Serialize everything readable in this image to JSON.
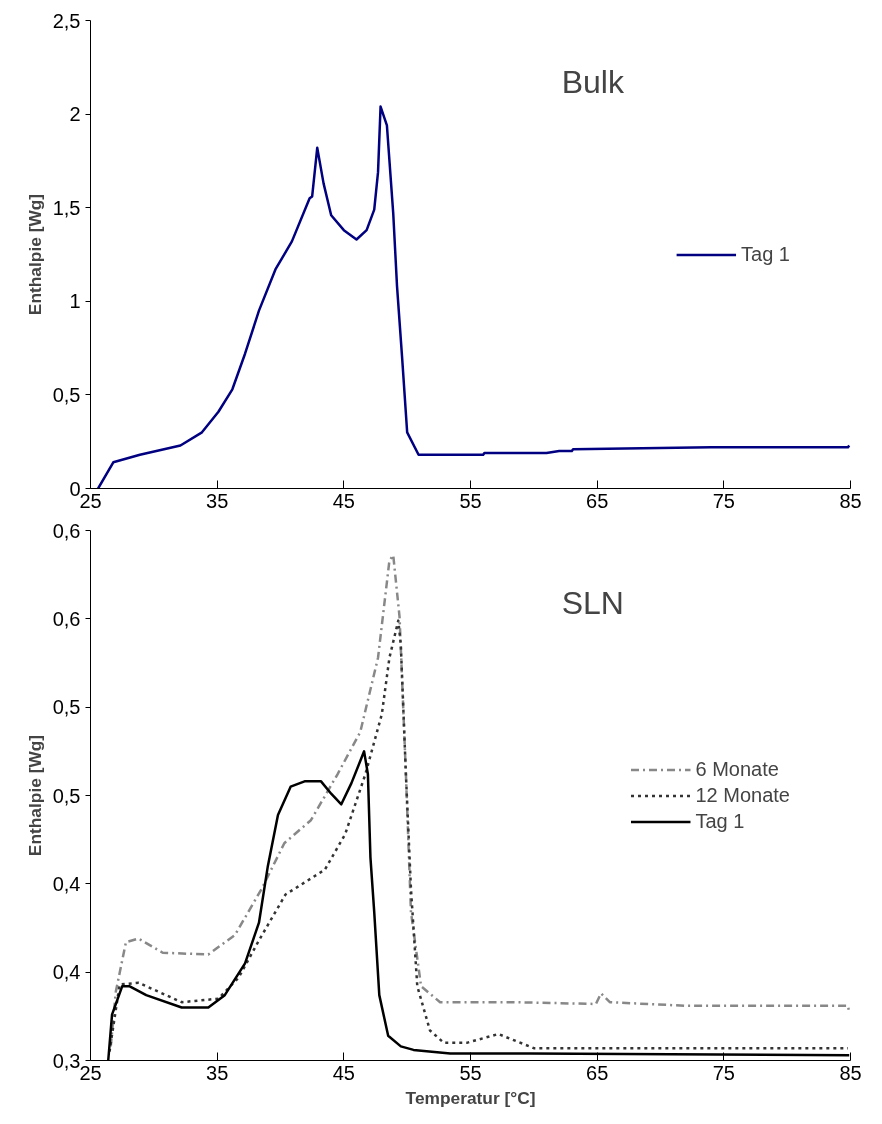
{
  "chart_data": [
    {
      "type": "line",
      "title": "Bulk",
      "ylabel": "Enthalpie [Wg]",
      "legend": "right",
      "grid": false,
      "xlim": [
        25,
        85
      ],
      "xticks": [
        25,
        35,
        45,
        55,
        65,
        75,
        85
      ],
      "ylim": [
        0,
        2.5
      ],
      "yticks": [
        0,
        {
          "value": 0.5,
          "label": "0,5"
        },
        1,
        {
          "value": 1.5,
          "label": "1,5"
        },
        2,
        {
          "value": 2.5,
          "label": "2,5"
        }
      ],
      "series": [
        {
          "name": "Tag 1",
          "color": "#000080",
          "line_style": "solid",
          "x": [
            25.6,
            26.8,
            28.9,
            32.1,
            33.8,
            35.1,
            36.2,
            37.2,
            38.3,
            39.6,
            40.9,
            42.3,
            42.5,
            42.9,
            43.4,
            44.0,
            45.0,
            46.0,
            46.8,
            47.4,
            47.7,
            47.9,
            48.4,
            48.9,
            49.2,
            49.6,
            50.0,
            50.9,
            56,
            56.1,
            61,
            62,
            63,
            63.1,
            74,
            84.8,
            84.9
          ],
          "values": [
            0,
            0.14,
            0.18,
            0.23,
            0.3,
            0.41,
            0.53,
            0.72,
            0.95,
            1.17,
            1.32,
            1.55,
            1.56,
            1.82,
            1.63,
            1.46,
            1.38,
            1.33,
            1.38,
            1.49,
            1.69,
            2.04,
            1.94,
            1.47,
            1.08,
            0.7,
            0.3,
            0.18,
            0.18,
            0.19,
            0.19,
            0.2,
            0.2,
            0.21,
            0.22,
            0.22,
            0.23
          ]
        }
      ]
    },
    {
      "type": "line",
      "title": "SLN",
      "xlabel": "Temperatur [°C]",
      "ylabel": "Enthalpie [Wg]",
      "legend": "right",
      "grid": false,
      "xlim": [
        25,
        85
      ],
      "xticks": [
        25,
        35,
        45,
        55,
        65,
        75,
        85
      ],
      "ylim": [
        0.3,
        0.6
      ],
      "yticks": [
        {
          "value": 0.3,
          "label": "0,3"
        },
        {
          "value": 0.35,
          "label": "0,4"
        },
        {
          "value": 0.4,
          "label": "0,4"
        },
        {
          "value": 0.45,
          "label": "0,5"
        },
        {
          "value": 0.5,
          "label": "0,5"
        },
        {
          "value": 0.55,
          "label": "0,6"
        },
        {
          "value": 0.6,
          "label": "0,6"
        }
      ],
      "series": [
        {
          "name": "6 Monate",
          "color": "#888888",
          "line_style": "dashed",
          "x": [
            26.6,
            27.0,
            27.8,
            28.8,
            30.7,
            34.3,
            36.4,
            38.5,
            40.3,
            42.4,
            44.5,
            46.3,
            47.7,
            48.6,
            48.9,
            49.4,
            49.9,
            50.3,
            51.1,
            52.6,
            58.4,
            64.9,
            65.3,
            66.0,
            71.9,
            84.8,
            84.9
          ],
          "values": [
            0.308,
            0.339,
            0.367,
            0.369,
            0.361,
            0.36,
            0.371,
            0.397,
            0.423,
            0.436,
            0.462,
            0.486,
            0.528,
            0.583,
            0.586,
            0.551,
            0.462,
            0.384,
            0.342,
            0.333,
            0.333,
            0.332,
            0.338,
            0.333,
            0.331,
            0.331,
            0.327
          ]
        },
        {
          "name": "12 Monate",
          "color": "#333333",
          "line_style": "dotted",
          "x": [
            26.5,
            27.3,
            28.8,
            32.2,
            35.1,
            36.7,
            38.3,
            40.4,
            43.5,
            45.1,
            46.7,
            48.0,
            48.6,
            49.3,
            49.5,
            49.9,
            50.3,
            50.8,
            51.8,
            52.9,
            54.7,
            57.2,
            60.0,
            84.8
          ],
          "values": [
            0.305,
            0.343,
            0.344,
            0.333,
            0.335,
            0.347,
            0.368,
            0.394,
            0.408,
            0.428,
            0.462,
            0.496,
            0.528,
            0.549,
            0.535,
            0.462,
            0.397,
            0.342,
            0.317,
            0.31,
            0.31,
            0.315,
            0.307,
            0.307
          ]
        },
        {
          "name": "Tag 1",
          "color": "#000000",
          "line_style": "solid",
          "x": [
            26.4,
            26.7,
            27.5,
            28.1,
            29.4,
            32.2,
            34.3,
            35.6,
            37.2,
            38.3,
            39.0,
            39.8,
            40.8,
            41.9,
            43.2,
            44.0,
            44.8,
            45.6,
            46.6,
            46.9,
            47.1,
            47.4,
            47.8,
            48.5,
            49.5,
            50.5,
            53.4,
            59.7,
            84.9
          ],
          "values": [
            0.3,
            0.326,
            0.342,
            0.342,
            0.337,
            0.33,
            0.33,
            0.337,
            0.355,
            0.378,
            0.41,
            0.439,
            0.455,
            0.458,
            0.458,
            0.451,
            0.445,
            0.457,
            0.475,
            0.462,
            0.415,
            0.384,
            0.337,
            0.314,
            0.308,
            0.306,
            0.304,
            0.304,
            0.303
          ]
        }
      ]
    }
  ]
}
